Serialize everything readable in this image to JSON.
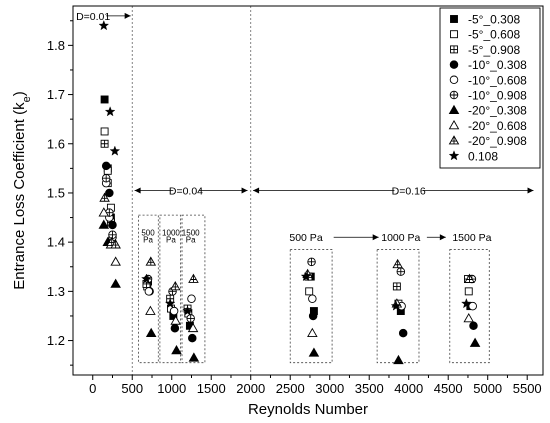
{
  "chart_data": {
    "type": "scatter",
    "xlabel": "Reynolds Number",
    "ylabel": "Entrance Loss Coefficient (k",
    "ylabel_sub": "e",
    "ylabel_close": ")",
    "xlim": [
      -250,
      5700
    ],
    "ylim": [
      1.13,
      1.88
    ],
    "xticks": [
      0,
      500,
      1000,
      1500,
      2000,
      2500,
      3000,
      3500,
      4000,
      4500,
      5000,
      5500
    ],
    "yticks": [
      1.2,
      1.3,
      1.4,
      1.5,
      1.6,
      1.7,
      1.8
    ],
    "grid": false,
    "legend": "top-right",
    "series": [
      {
        "name": "-5°_0.308",
        "marker": "filled-square",
        "points": [
          [
            150,
            1.69
          ],
          [
            190,
            1.55
          ],
          [
            230,
            1.45
          ],
          [
            700,
            1.32
          ],
          [
            1020,
            1.25
          ],
          [
            1230,
            1.23
          ],
          [
            2760,
            1.33
          ],
          [
            2800,
            1.26
          ],
          [
            3900,
            1.26
          ],
          [
            4780,
            1.27
          ]
        ]
      },
      {
        "name": "-5°_0.608",
        "marker": "open-square",
        "points": [
          [
            150,
            1.625
          ],
          [
            190,
            1.545
          ],
          [
            230,
            1.47
          ],
          [
            690,
            1.31
          ],
          [
            990,
            1.265
          ],
          [
            1210,
            1.255
          ],
          [
            2740,
            1.3
          ],
          [
            3870,
            1.275
          ],
          [
            4760,
            1.3
          ]
        ]
      },
      {
        "name": "-5°_0.908",
        "marker": "grid-square",
        "points": [
          [
            150,
            1.6
          ],
          [
            190,
            1.52
          ],
          [
            230,
            1.44
          ],
          [
            680,
            1.315
          ],
          [
            980,
            1.285
          ],
          [
            1200,
            1.265
          ],
          [
            2730,
            1.33
          ],
          [
            3850,
            1.31
          ],
          [
            4750,
            1.325
          ]
        ]
      },
      {
        "name": "-10°_0.308",
        "marker": "filled-circle",
        "points": [
          [
            170,
            1.555
          ],
          [
            210,
            1.5
          ],
          [
            250,
            1.435
          ],
          [
            720,
            1.3
          ],
          [
            1040,
            1.225
          ],
          [
            1260,
            1.205
          ],
          [
            2790,
            1.25
          ],
          [
            3930,
            1.215
          ],
          [
            4820,
            1.23
          ]
        ]
      },
      {
        "name": "-10°_0.608",
        "marker": "open-circle",
        "points": [
          [
            170,
            1.52
          ],
          [
            210,
            1.45
          ],
          [
            250,
            1.41
          ],
          [
            710,
            1.3
          ],
          [
            1030,
            1.26
          ],
          [
            1250,
            1.285
          ],
          [
            2780,
            1.285
          ],
          [
            3910,
            1.27
          ],
          [
            4810,
            1.27
          ]
        ]
      },
      {
        "name": "-10°_0.908",
        "marker": "crossed-circle",
        "points": [
          [
            170,
            1.53
          ],
          [
            210,
            1.46
          ],
          [
            250,
            1.415
          ],
          [
            700,
            1.325
          ],
          [
            1010,
            1.3
          ],
          [
            1240,
            1.245
          ],
          [
            2770,
            1.36
          ],
          [
            3900,
            1.34
          ],
          [
            4800,
            1.325
          ]
        ]
      },
      {
        "name": "-20°_0.308",
        "marker": "filled-triangle",
        "points": [
          [
            140,
            1.435
          ],
          [
            190,
            1.4
          ],
          [
            290,
            1.315
          ],
          [
            740,
            1.215
          ],
          [
            1060,
            1.18
          ],
          [
            1280,
            1.165
          ],
          [
            2800,
            1.175
          ],
          [
            3870,
            1.16
          ],
          [
            4840,
            1.195
          ]
        ]
      },
      {
        "name": "-20°_0.608",
        "marker": "open-triangle",
        "points": [
          [
            140,
            1.46
          ],
          [
            230,
            1.395
          ],
          [
            290,
            1.36
          ],
          [
            730,
            1.26
          ],
          [
            1050,
            1.24
          ],
          [
            1270,
            1.225
          ],
          [
            2780,
            1.215
          ],
          [
            3850,
            1.275
          ],
          [
            4760,
            1.245
          ]
        ]
      },
      {
        "name": "-20°_0.908",
        "marker": "crossed-triangle",
        "points": [
          [
            150,
            1.49
          ],
          [
            240,
            1.4
          ],
          [
            290,
            1.395
          ],
          [
            735,
            1.36
          ],
          [
            1045,
            1.31
          ],
          [
            1275,
            1.325
          ],
          [
            2720,
            1.335
          ],
          [
            3860,
            1.355
          ],
          [
            4770,
            1.325
          ]
        ]
      },
      {
        "name": "0.108",
        "marker": "filled-star",
        "points": [
          [
            140,
            1.84
          ],
          [
            220,
            1.665
          ],
          [
            280,
            1.585
          ],
          [
            680,
            1.325
          ],
          [
            980,
            1.275
          ],
          [
            1200,
            1.26
          ],
          [
            2700,
            1.33
          ],
          [
            3840,
            1.27
          ],
          [
            4730,
            1.275
          ]
        ]
      }
    ],
    "annotations": {
      "labels": [
        {
          "text": "D=0.01",
          "x": 5,
          "y": 1.86,
          "size": "normal"
        },
        {
          "text": "D=0.04",
          "x": 1180,
          "y": 1.505,
          "size": "normal"
        },
        {
          "text": "D=0.16",
          "x": 4000,
          "y": 1.505,
          "size": "normal"
        },
        {
          "text": "500 Pa",
          "x": 2700,
          "y": 1.41,
          "size": "normal"
        },
        {
          "text": "1000 Pa",
          "x": 3900,
          "y": 1.41,
          "size": "normal"
        },
        {
          "text": "1500 Pa",
          "x": 4800,
          "y": 1.41,
          "size": "normal"
        },
        {
          "text": "500",
          "x": 700,
          "y": 1.42,
          "size": "small"
        },
        {
          "text": "Pa",
          "x": 700,
          "y": 1.405,
          "size": "small"
        },
        {
          "text": "1000",
          "x": 990,
          "y": 1.42,
          "size": "small"
        },
        {
          "text": "Pa",
          "x": 990,
          "y": 1.405,
          "size": "small"
        },
        {
          "text": "1500",
          "x": 1240,
          "y": 1.42,
          "size": "small"
        },
        {
          "text": "Pa",
          "x": 1240,
          "y": 1.405,
          "size": "small"
        }
      ],
      "arrows": [
        {
          "name": "d001-right-arrow",
          "x1": 170,
          "x2": 480,
          "y": 1.86,
          "head": "end"
        },
        {
          "name": "d004-left-arrow",
          "x1": 1020,
          "x2": 530,
          "y": 1.505,
          "head": "end"
        },
        {
          "name": "d004-right-arrow",
          "x1": 1340,
          "x2": 1960,
          "y": 1.505,
          "head": "end"
        },
        {
          "name": "d016-left-arrow",
          "x1": 3820,
          "x2": 2030,
          "y": 1.505,
          "head": "end"
        },
        {
          "name": "d016-right-arrow",
          "x1": 4180,
          "x2": 5580,
          "y": 1.505,
          "head": "end"
        },
        {
          "name": "pa500-arrow",
          "x1": 3050,
          "x2": 3620,
          "y": 1.41,
          "head": "end"
        },
        {
          "name": "pa1000-arrow",
          "x1": 4230,
          "x2": 4470,
          "y": 1.41,
          "head": "end"
        }
      ],
      "vlines": [
        {
          "name": "divider-d001-d004",
          "x": 500
        },
        {
          "name": "divider-d004-d016",
          "x": 2000
        }
      ],
      "boxes": [
        {
          "name": "box-d004-500pa",
          "x0": 580,
          "x1": 830,
          "y0": 1.155,
          "y1": 1.455
        },
        {
          "name": "box-d004-1000pa",
          "x0": 850,
          "x1": 1110,
          "y0": 1.155,
          "y1": 1.455
        },
        {
          "name": "box-d004-1500pa",
          "x0": 1130,
          "x1": 1420,
          "y0": 1.155,
          "y1": 1.455
        },
        {
          "name": "box-d016-500pa",
          "x0": 2500,
          "x1": 3030,
          "y0": 1.155,
          "y1": 1.385
        },
        {
          "name": "box-d016-1000pa",
          "x0": 3600,
          "x1": 4130,
          "y0": 1.155,
          "y1": 1.385
        },
        {
          "name": "box-d016-1500pa",
          "x0": 4520,
          "x1": 5020,
          "y0": 1.155,
          "y1": 1.385
        }
      ]
    }
  }
}
